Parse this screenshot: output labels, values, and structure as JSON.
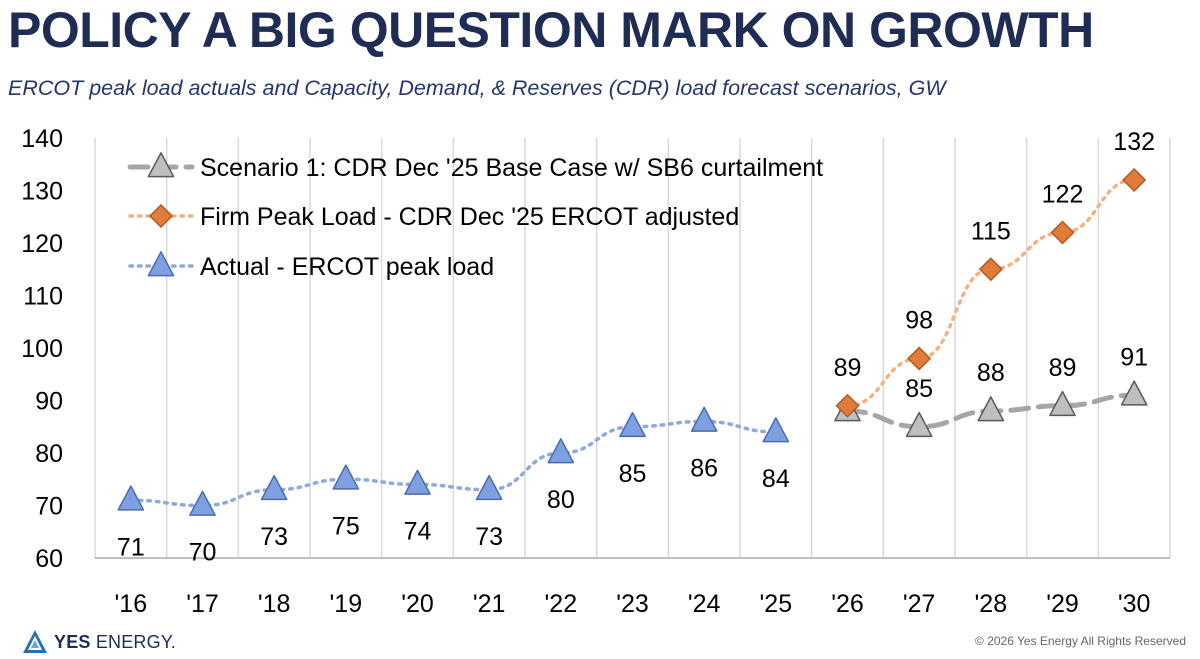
{
  "headline": "POLICY A BIG QUESTION MARK ON GROWTH",
  "subtitle": "ERCOT peak load actuals and Capacity, Demand, & Reserves (CDR) load forecast scenarios, GW",
  "logo": {
    "bold": "YES",
    "rest": " ENERGY",
    "mark": "."
  },
  "copyright": "© 2026 Yes Energy All Rights Reserved",
  "chart_data": {
    "type": "line",
    "categories": [
      "'16",
      "'17",
      "'18",
      "'19",
      "'20",
      "'21",
      "'22",
      "'23",
      "'24",
      "'25",
      "'26",
      "'27",
      "'28",
      "'29",
      "'30"
    ],
    "ylim": [
      60,
      140
    ],
    "yticks": [
      60,
      70,
      80,
      90,
      100,
      110,
      120,
      130,
      140
    ],
    "grid": "vertical",
    "legend_position": "top-left",
    "series": [
      {
        "name": "Scenario 1: CDR Dec '25 Base Case w/ SB6 curtailment",
        "marker": "triangle",
        "style": "dashed",
        "line_color": "#a6a6a6",
        "marker_fill": "#bfbfbf",
        "marker_edge": "#595959",
        "values": [
          null,
          null,
          null,
          null,
          null,
          null,
          null,
          null,
          null,
          null,
          88,
          85,
          88,
          89,
          91
        ],
        "labels": [
          "",
          "",
          "",
          "",
          "",
          "",
          "",
          "",
          "",
          "",
          "",
          "85",
          "88",
          "89",
          "91"
        ]
      },
      {
        "name": "Firm Peak Load - CDR Dec '25 ERCOT adjusted",
        "marker": "diamond",
        "style": "dotted",
        "line_color": "#f4b183",
        "marker_fill": "#e07b39",
        "marker_edge": "#b05a1e",
        "values": [
          null,
          null,
          null,
          null,
          null,
          null,
          null,
          null,
          null,
          null,
          89,
          98,
          115,
          122,
          132
        ],
        "labels": [
          "",
          "",
          "",
          "",
          "",
          "",
          "",
          "",
          "",
          "",
          "89",
          "98",
          "115",
          "122",
          "132"
        ]
      },
      {
        "name": "Actual - ERCOT peak load",
        "marker": "triangle",
        "style": "dotted",
        "line_color": "#8fa9dc",
        "marker_fill": "#7ea0e0",
        "marker_edge": "#4a6bb0",
        "values": [
          71,
          70,
          73,
          75,
          74,
          73,
          80,
          85,
          86,
          84,
          null,
          null,
          null,
          null,
          null
        ],
        "labels": [
          "71",
          "70",
          "73",
          "75",
          "74",
          "73",
          "80",
          "85",
          "86",
          "84",
          "",
          "",
          "",
          "",
          ""
        ]
      }
    ]
  }
}
